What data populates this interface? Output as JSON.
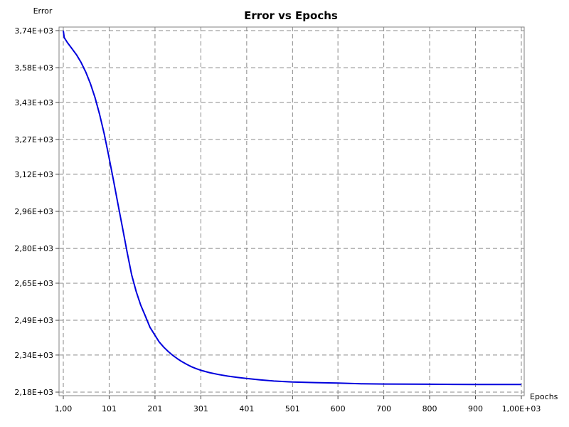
{
  "chart_data": {
    "type": "line",
    "title": "Error vs Epochs",
    "xlabel": "Epochs",
    "ylabel": "Error",
    "xlim": [
      1,
      1000
    ],
    "ylim": [
      2180,
      3740
    ],
    "grid": true,
    "x_ticks": [
      {
        "value": 1,
        "label": "1,00"
      },
      {
        "value": 101,
        "label": "101"
      },
      {
        "value": 201,
        "label": "201"
      },
      {
        "value": 301,
        "label": "301"
      },
      {
        "value": 401,
        "label": "401"
      },
      {
        "value": 501,
        "label": "501"
      },
      {
        "value": 600,
        "label": "600"
      },
      {
        "value": 700,
        "label": "700"
      },
      {
        "value": 800,
        "label": "800"
      },
      {
        "value": 900,
        "label": "900"
      },
      {
        "value": 1000,
        "label": "1,00E+03"
      }
    ],
    "y_ticks": [
      {
        "value": 2180,
        "label": "2,18E+03"
      },
      {
        "value": 2340,
        "label": "2,34E+03"
      },
      {
        "value": 2490,
        "label": "2,49E+03"
      },
      {
        "value": 2650,
        "label": "2,65E+03"
      },
      {
        "value": 2800,
        "label": "2,80E+03"
      },
      {
        "value": 2960,
        "label": "2,96E+03"
      },
      {
        "value": 3120,
        "label": "3,12E+03"
      },
      {
        "value": 3270,
        "label": "3,27E+03"
      },
      {
        "value": 3430,
        "label": "3,43E+03"
      },
      {
        "value": 3580,
        "label": "3,58E+03"
      },
      {
        "value": 3740,
        "label": "3,74E+03"
      }
    ],
    "series": [
      {
        "color": "#0000dd",
        "x": [
          1,
          3,
          10,
          20,
          30,
          40,
          50,
          60,
          70,
          80,
          90,
          100,
          110,
          120,
          130,
          140,
          150,
          160,
          170,
          180,
          190,
          200,
          210,
          220,
          230,
          240,
          250,
          260,
          270,
          280,
          290,
          300,
          320,
          340,
          360,
          380,
          400,
          430,
          460,
          500,
          550,
          600,
          650,
          700,
          800,
          900,
          1000
        ],
        "y": [
          3740,
          3710,
          3688,
          3662,
          3635,
          3602,
          3561,
          3512,
          3452,
          3380,
          3296,
          3200,
          3098,
          2994,
          2890,
          2786,
          2686,
          2614,
          2555,
          2508,
          2460,
          2428,
          2397,
          2374,
          2355,
          2338,
          2324,
          2311,
          2300,
          2290,
          2282,
          2275,
          2264,
          2256,
          2249,
          2244,
          2239,
          2233,
          2228,
          2224,
          2221,
          2219,
          2216,
          2215,
          2214,
          2213,
          2213
        ]
      }
    ]
  }
}
